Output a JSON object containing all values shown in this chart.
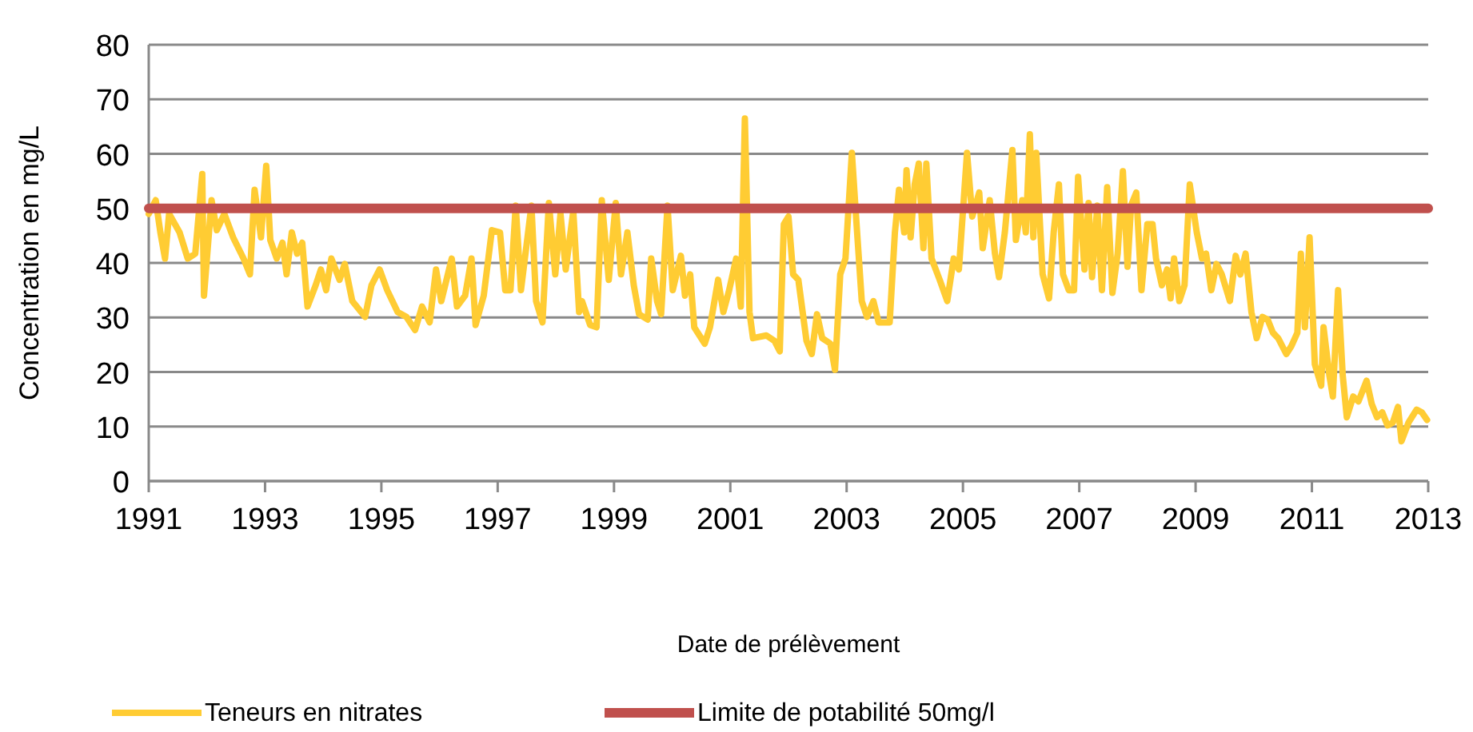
{
  "chart_data": {
    "type": "line",
    "xlabel": "Date de prélèvement",
    "ylabel": "Concentration en mg/L",
    "xlim": [
      1991,
      2013
    ],
    "xticks": [
      1991,
      1993,
      1995,
      1997,
      1999,
      2001,
      2003,
      2005,
      2007,
      2009,
      2011,
      2013
    ],
    "ylim": [
      0,
      80
    ],
    "yticks": [
      0,
      10,
      20,
      30,
      40,
      50,
      60,
      70,
      80
    ],
    "grid": "y",
    "legend": "bottom",
    "marker": "none",
    "line_style": "solid",
    "series": [
      {
        "name": "Teneurs en nitrates",
        "color": "#ffcc33",
        "x": [
          1991.0,
          1991.12,
          1991.2,
          1991.28,
          1991.35,
          1991.53,
          1991.67,
          1991.8,
          1991.92,
          1991.95,
          1992.08,
          1992.17,
          1992.3,
          1992.45,
          1992.63,
          1992.74,
          1992.82,
          1992.93,
          1993.02,
          1993.09,
          1993.2,
          1993.3,
          1993.37,
          1993.46,
          1993.55,
          1993.64,
          1993.73,
          1993.87,
          1993.96,
          1994.05,
          1994.14,
          1994.28,
          1994.37,
          1994.5,
          1994.72,
          1994.83,
          1994.97,
          1995.1,
          1995.28,
          1995.43,
          1995.58,
          1995.7,
          1995.83,
          1995.94,
          1996.03,
          1996.21,
          1996.3,
          1996.44,
          1996.55,
          1996.62,
          1996.76,
          1996.9,
          1997.04,
          1997.13,
          1997.22,
          1997.31,
          1997.4,
          1997.58,
          1997.66,
          1997.77,
          1997.88,
          1997.99,
          1998.08,
          1998.17,
          1998.3,
          1998.4,
          1998.45,
          1998.59,
          1998.7,
          1998.79,
          1998.91,
          1999.03,
          1999.12,
          1999.23,
          1999.34,
          1999.43,
          1999.58,
          1999.64,
          1999.74,
          1999.81,
          1999.92,
          2000.01,
          2000.15,
          2000.22,
          2000.31,
          2000.38,
          2000.56,
          2000.65,
          2000.79,
          2000.88,
          2000.98,
          2001.1,
          2001.18,
          2001.25,
          2001.33,
          2001.39,
          2001.62,
          2001.76,
          2001.85,
          2001.92,
          2002.0,
          2002.08,
          2002.17,
          2002.31,
          2002.4,
          2002.49,
          2002.58,
          2002.72,
          2002.8,
          2002.89,
          2002.98,
          2003.09,
          2003.18,
          2003.26,
          2003.35,
          2003.46,
          2003.55,
          2003.74,
          2003.83,
          2003.9,
          2003.99,
          2004.03,
          2004.1,
          2004.17,
          2004.24,
          2004.32,
          2004.37,
          2004.46,
          2004.6,
          2004.73,
          2004.84,
          2004.93,
          2005.07,
          2005.16,
          2005.28,
          2005.34,
          2005.46,
          2005.55,
          2005.62,
          2005.72,
          2005.85,
          2005.91,
          2006.02,
          2006.08,
          2006.15,
          2006.21,
          2006.26,
          2006.37,
          2006.48,
          2006.56,
          2006.65,
          2006.72,
          2006.82,
          2006.91,
          2006.98,
          2007.09,
          2007.16,
          2007.22,
          2007.31,
          2007.39,
          2007.48,
          2007.57,
          2007.66,
          2007.75,
          2007.83,
          2007.89,
          2007.98,
          2008.07,
          2008.17,
          2008.26,
          2008.32,
          2008.42,
          2008.51,
          2008.57,
          2008.63,
          2008.72,
          2008.81,
          2008.9,
          2009.02,
          2009.11,
          2009.18,
          2009.27,
          2009.36,
          2009.45,
          2009.59,
          2009.69,
          2009.77,
          2009.86,
          2009.96,
          2010.05,
          2010.15,
          2010.24,
          2010.33,
          2010.42,
          2010.56,
          2010.65,
          2010.75,
          2010.81,
          2010.88,
          2010.96,
          2011.05,
          2011.16,
          2011.2,
          2011.3,
          2011.36,
          2011.45,
          2011.53,
          2011.6,
          2011.71,
          2011.8,
          2011.94,
          2012.03,
          2012.12,
          2012.21,
          2012.3,
          2012.39,
          2012.48,
          2012.54,
          2012.66,
          2012.8,
          2012.89,
          2012.98
        ],
        "values": [
          49,
          51.5,
          45.6,
          40.8,
          49,
          45.6,
          40.8,
          41.7,
          56.3,
          34,
          51.5,
          46,
          49,
          44.7,
          40.8,
          37.9,
          53.4,
          44.7,
          57.8,
          44.2,
          40.8,
          43.7,
          37.9,
          45.6,
          41.7,
          43.7,
          32,
          35.9,
          38.8,
          35,
          40.8,
          36.9,
          39.8,
          33,
          30.1,
          35.9,
          38.8,
          35,
          31,
          30.1,
          27.7,
          32,
          29.1,
          38.8,
          33,
          40.8,
          32,
          34,
          40.8,
          28.6,
          34,
          46,
          45.6,
          35,
          35,
          50.5,
          35,
          50.5,
          33,
          29.1,
          51,
          37.9,
          49,
          38.8,
          49.5,
          31,
          33,
          28.6,
          28.2,
          51.5,
          36.9,
          51,
          37.9,
          45.6,
          35.9,
          30.6,
          29.6,
          40.8,
          33,
          30.6,
          50.5,
          35,
          41.3,
          34,
          37.9,
          28.2,
          25.2,
          28.2,
          36.9,
          31,
          35,
          40.8,
          32,
          66.5,
          31,
          26.2,
          26.7,
          25.7,
          23.8,
          47.1,
          48.5,
          37.9,
          36.9,
          25.7,
          23.3,
          30.6,
          26.2,
          25.2,
          20.4,
          37.9,
          40.8,
          60.2,
          45.6,
          33,
          30.1,
          33,
          29.1,
          29.1,
          45.6,
          53.4,
          45.6,
          57,
          44.7,
          54.4,
          58.2,
          42.7,
          58.2,
          40.8,
          36.9,
          33,
          40.8,
          38.8,
          60.2,
          48.5,
          52.9,
          42.7,
          51.5,
          41.7,
          37.4,
          45.6,
          60.7,
          44.2,
          51.5,
          45.6,
          63.6,
          44.7,
          60.2,
          37.9,
          33.5,
          45.6,
          54.4,
          37.9,
          35,
          35,
          55.8,
          38.8,
          51,
          37.4,
          50.5,
          35,
          53.9,
          34.5,
          41.7,
          56.8,
          39.3,
          50.5,
          52.9,
          35,
          47.1,
          47.1,
          40.8,
          35.9,
          38.8,
          33.5,
          40.8,
          33,
          35.9,
          54.4,
          45.6,
          40.8,
          41.7,
          35,
          39.8,
          37.9,
          33,
          41.3,
          37.9,
          41.7,
          31,
          26.2,
          30.1,
          29.6,
          27.2,
          26.2,
          23.3,
          24.8,
          27.2,
          41.7,
          28.2,
          44.7,
          21.4,
          17.5,
          28.2,
          19.4,
          15.5,
          35,
          19.4,
          11.7,
          15.5,
          14.6,
          18.4,
          14.1,
          11.7,
          12.6,
          10.2,
          10.7,
          13.6,
          7.3,
          10.7,
          13.1,
          12.6,
          11.2
        ]
      },
      {
        "name": "Limite de potabilité 50mg/l",
        "color": "#c0504d",
        "x": [
          1991,
          2013
        ],
        "values": [
          50,
          50
        ]
      }
    ]
  }
}
